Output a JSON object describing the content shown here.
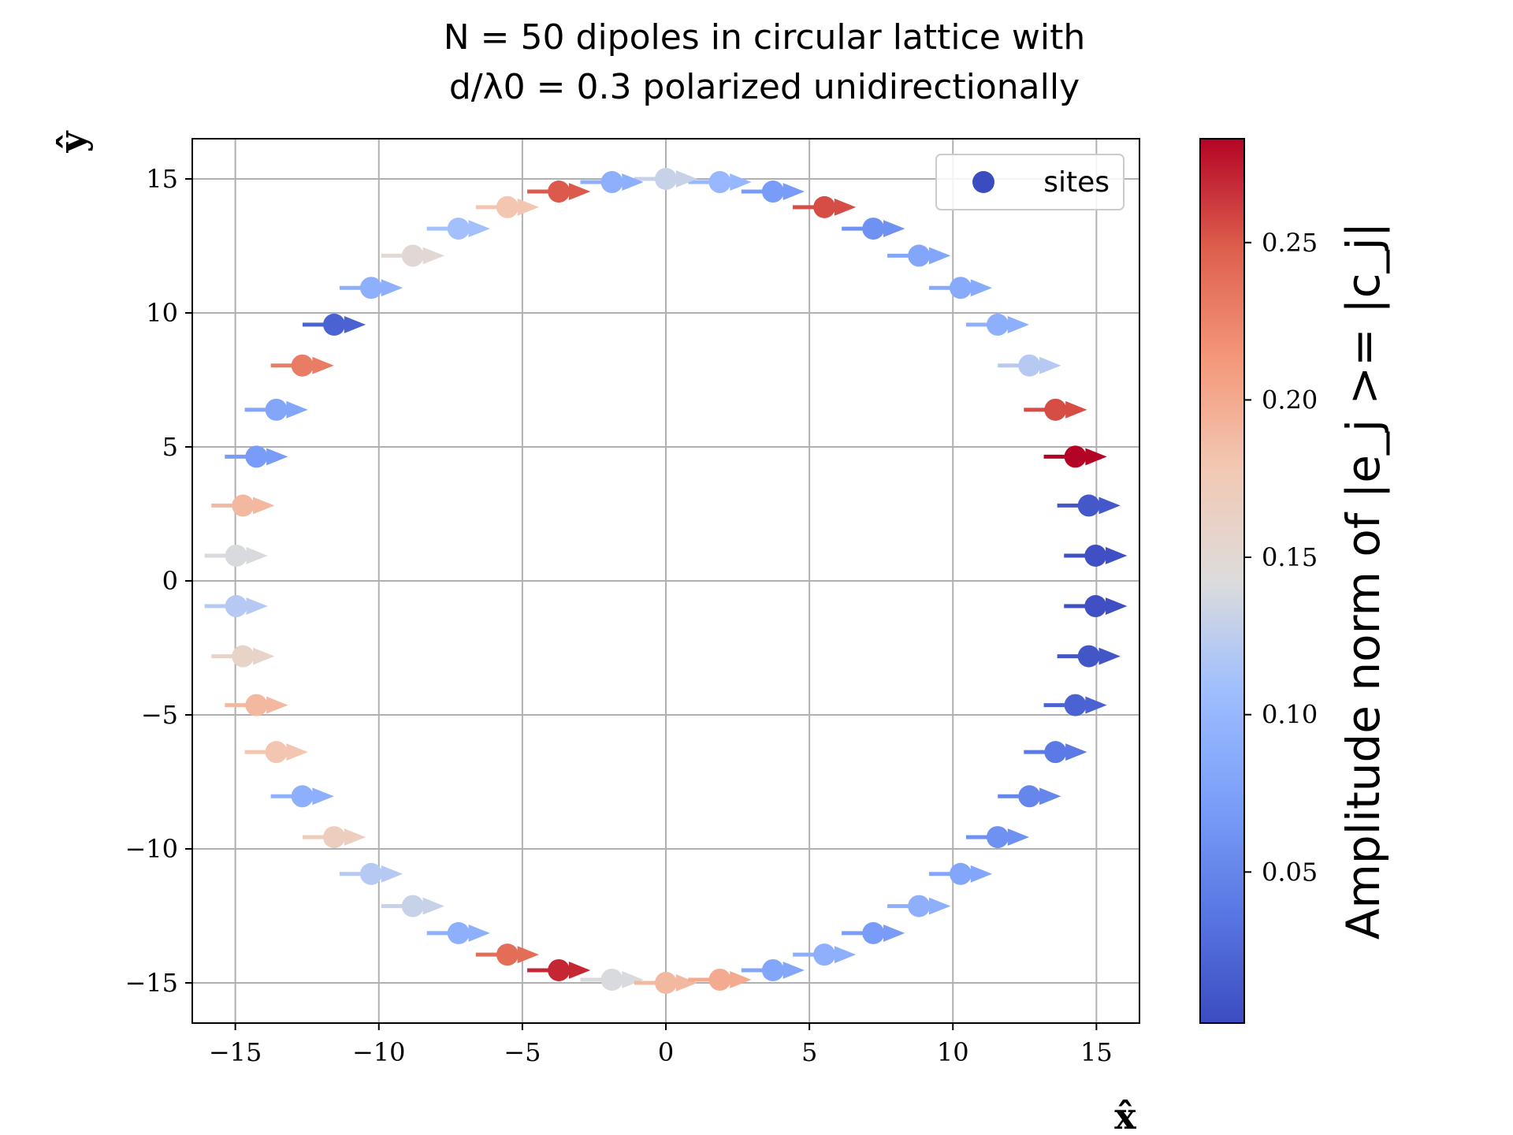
{
  "chart_data": {
    "type": "scatter",
    "title_line1": "N = 50 dipoles in circular lattice with",
    "title_line2": "d/λ0 = 0.3 polarized unidirectionally",
    "xlabel": "x̂",
    "ylabel": "ŷ",
    "xlim": [
      -16.5,
      16.5
    ],
    "ylim": [
      -16.5,
      16.5
    ],
    "xticks": [
      -15,
      -10,
      -5,
      0,
      5,
      10,
      15
    ],
    "yticks": [
      -15,
      -10,
      -5,
      0,
      5,
      10,
      15
    ],
    "xtick_labels": [
      "−15",
      "−10",
      "−5",
      "0",
      "5",
      "10",
      "15"
    ],
    "ytick_labels": [
      "−15",
      "−10",
      "−5",
      "0",
      "5",
      "10",
      "15"
    ],
    "grid": true,
    "legend": {
      "placement": "top-right",
      "entries": [
        "sites"
      ],
      "marker_color": "#3b4cc0"
    },
    "colorbar": {
      "colormap": "coolwarm",
      "label": "Amplitude norm of |e_j >= |c_j|",
      "range": [
        0.002,
        0.283
      ],
      "ticks": [
        0.05,
        0.1,
        0.15,
        0.2,
        0.25
      ],
      "tick_labels": [
        "0.05",
        "0.10",
        "0.15",
        "0.20",
        "0.25"
      ]
    },
    "series": [
      {
        "name": "sites",
        "radius": 15,
        "count": 50,
        "dipole_direction": "+x",
        "values": [
          0.005,
          0.012,
          0.283,
          0.255,
          0.12,
          0.09,
          0.085,
          0.08,
          0.06,
          0.255,
          0.07,
          0.1,
          0.13,
          0.09,
          0.25,
          0.18,
          0.11,
          0.15,
          0.09,
          0.02,
          0.23,
          0.08,
          0.07,
          0.19,
          0.14,
          0.12,
          0.16,
          0.19,
          0.18,
          0.09,
          0.17,
          0.12,
          0.13,
          0.09,
          0.24,
          0.27,
          0.14,
          0.19,
          0.2,
          0.08,
          0.09,
          0.07,
          0.09,
          0.08,
          0.06,
          0.05,
          0.04,
          0.02,
          0.01,
          0.005
        ]
      }
    ]
  }
}
